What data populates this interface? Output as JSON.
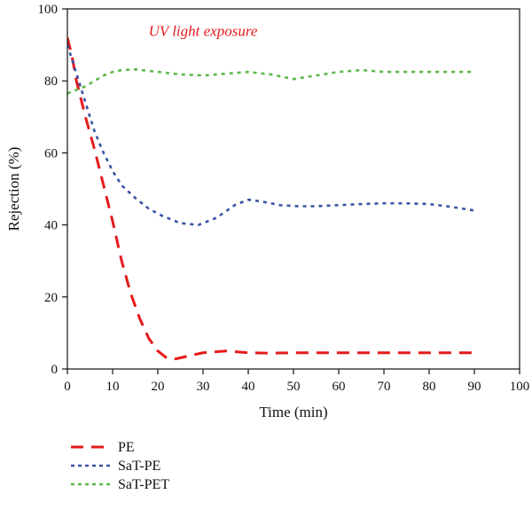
{
  "chart_data": {
    "type": "line",
    "title": "",
    "xlabel": "Time (min)",
    "ylabel": "Rejection (%)",
    "xlim": [
      0,
      100
    ],
    "ylim": [
      0,
      100
    ],
    "x_ticks": [
      0,
      10,
      20,
      30,
      40,
      50,
      60,
      70,
      80,
      90,
      100
    ],
    "y_ticks": [
      0,
      20,
      40,
      60,
      80,
      100
    ],
    "grid": false,
    "legend_position": "bottom-left-outside",
    "annotations": [
      {
        "text": "UV light exposure",
        "x": 30,
        "y": 92.5,
        "color": "#e41a1c"
      }
    ],
    "series": [
      {
        "name": "PE",
        "color": "#e41a1c",
        "style": "long-dash",
        "x": [
          0,
          1,
          2,
          4,
          6,
          8,
          10,
          12,
          14,
          16,
          18,
          20,
          22,
          24,
          27,
          30,
          35,
          40,
          45,
          50,
          60,
          70,
          80,
          90
        ],
        "y": [
          92,
          87,
          80,
          70,
          61,
          51,
          41,
          30,
          21,
          14,
          8.5,
          5,
          3,
          2.8,
          3.7,
          4.5,
          5,
          4.5,
          4.4,
          4.5,
          4.5,
          4.5,
          4.5,
          4.5
        ]
      },
      {
        "name": "SaT-PE",
        "color": "#3953a4",
        "style": "short-dash",
        "x": [
          0,
          2,
          4,
          6,
          8,
          10,
          12,
          15,
          18,
          21,
          25,
          29,
          33,
          37,
          40,
          43,
          47,
          51,
          55,
          60,
          65,
          70,
          75,
          80,
          85,
          90
        ],
        "y": [
          90,
          82,
          74,
          66,
          60,
          55,
          51,
          47.5,
          44.5,
          42.5,
          40.5,
          40,
          42,
          45.5,
          47,
          46.5,
          45.5,
          45.2,
          45.2,
          45.5,
          45.8,
          46,
          46,
          45.8,
          45,
          44
        ]
      },
      {
        "name": "SaT-PET",
        "color": "#5cb848",
        "style": "short-dash",
        "x": [
          0,
          2,
          4,
          6,
          8,
          10,
          12,
          15,
          20,
          25,
          30,
          35,
          40,
          45,
          50,
          55,
          60,
          65,
          70,
          75,
          80,
          85,
          90
        ],
        "y": [
          76.5,
          77.5,
          78.5,
          80,
          81.5,
          82.5,
          83,
          83.2,
          82.5,
          81.8,
          81.5,
          82,
          82.5,
          81.8,
          80.5,
          81.5,
          82.5,
          83,
          82.5,
          82.5,
          82.5,
          82.5,
          82.5
        ]
      }
    ]
  }
}
